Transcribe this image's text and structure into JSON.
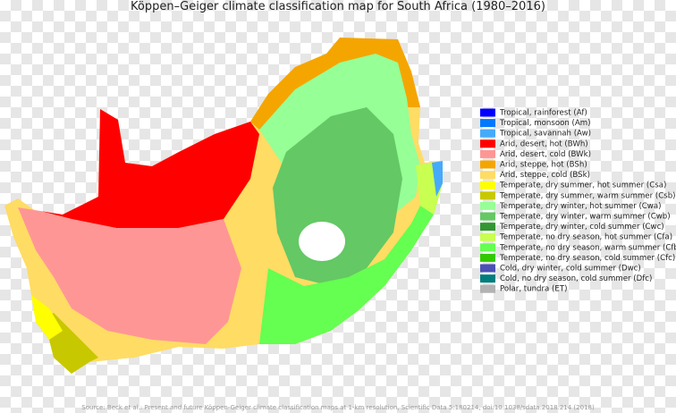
{
  "title": "Köppen–Geiger climate classification map for South Africa (1980–2016)",
  "legend": {
    "items": [
      {
        "label": "Tropical, rainforest (Af)",
        "color": "#0000ff"
      },
      {
        "label": "Tropical, monsoon (Am)",
        "color": "#0078ff"
      },
      {
        "label": "Tropical, savannah (Aw)",
        "color": "#46aafa"
      },
      {
        "label": "Arid, desert, hot (BWh)",
        "color": "#ff0000"
      },
      {
        "label": "Arid, desert, cold (BWk)",
        "color": "#ff9696"
      },
      {
        "label": "Arid, steppe, hot (BSh)",
        "color": "#f5a500"
      },
      {
        "label": "Arid, steppe, cold (BSk)",
        "color": "#ffdc64"
      },
      {
        "label": "Temperate, dry summer, hot summer (Csa)",
        "color": "#ffff00"
      },
      {
        "label": "Temperate, dry summer, warm summer (Csb)",
        "color": "#c8c800"
      },
      {
        "label": "Temperate, dry winter, hot summer (Cwa)",
        "color": "#96ff96"
      },
      {
        "label": "Temperate, dry winter, warm summer (Cwb)",
        "color": "#64c864"
      },
      {
        "label": "Temperate, dry winter, cold summer (Cwc)",
        "color": "#329632"
      },
      {
        "label": "Temperate, no dry season, hot summer (Cfa)",
        "color": "#c8ff50"
      },
      {
        "label": "Temperate, no dry season, warm summer (Cfb)",
        "color": "#64ff50"
      },
      {
        "label": "Temperate, no dry season, cold summer (Cfc)",
        "color": "#32c800"
      },
      {
        "label": "Cold, dry winter, cold summer (Dwc)",
        "color": "#4b50b4"
      },
      {
        "label": "Cold, no dry season, cold summer (Dfc)",
        "color": "#007d7d"
      },
      {
        "label": "Polar, tundra (ET)",
        "color": "#b2b2b2"
      }
    ]
  },
  "source": "Source: Beck et al.: Present and future Köppen-Geiger climate classification maps at 1-km resolution, Scientific Data 5:180214, doi:10.1038/sdata.2018.214 (2018)"
}
